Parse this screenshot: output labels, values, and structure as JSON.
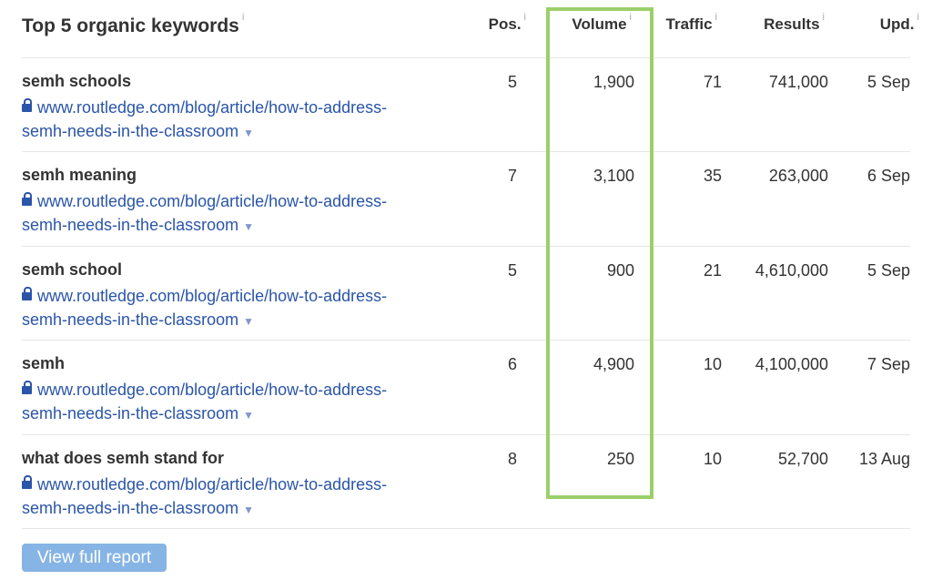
{
  "title": "Top 5 organic keywords",
  "info_glyph": "i",
  "columns": {
    "pos": "Pos.",
    "volume": "Volume",
    "traffic": "Traffic",
    "results": "Results",
    "upd": "Upd."
  },
  "rows": [
    {
      "keyword": "semh schools",
      "url1": "www.routledge.com/blog/article/how-to-address-",
      "url2": "semh-needs-in-the-classroom",
      "pos": "5",
      "volume": "1,900",
      "traffic": "71",
      "results": "741,000",
      "upd": "5 Sep"
    },
    {
      "keyword": "semh meaning",
      "url1": "www.routledge.com/blog/article/how-to-address-",
      "url2": "semh-needs-in-the-classroom",
      "pos": "7",
      "volume": "3,100",
      "traffic": "35",
      "results": "263,000",
      "upd": "6 Sep"
    },
    {
      "keyword": "semh school",
      "url1": "www.routledge.com/blog/article/how-to-address-",
      "url2": "semh-needs-in-the-classroom",
      "pos": "5",
      "volume": "900",
      "traffic": "21",
      "results": "4,610,000",
      "upd": "5 Sep"
    },
    {
      "keyword": "semh",
      "url1": "www.routledge.com/blog/article/how-to-address-",
      "url2": "semh-needs-in-the-classroom",
      "pos": "6",
      "volume": "4,900",
      "traffic": "10",
      "results": "4,100,000",
      "upd": "7 Sep"
    },
    {
      "keyword": "what does semh stand for",
      "url1": "www.routledge.com/blog/article/how-to-address-",
      "url2": "semh-needs-in-the-classroom",
      "pos": "8",
      "volume": "250",
      "traffic": "10",
      "results": "52,700",
      "upd": "13 Aug"
    }
  ],
  "button": "View full report",
  "highlight_color": "#9bcf6a",
  "link_color": "#2a55a8"
}
